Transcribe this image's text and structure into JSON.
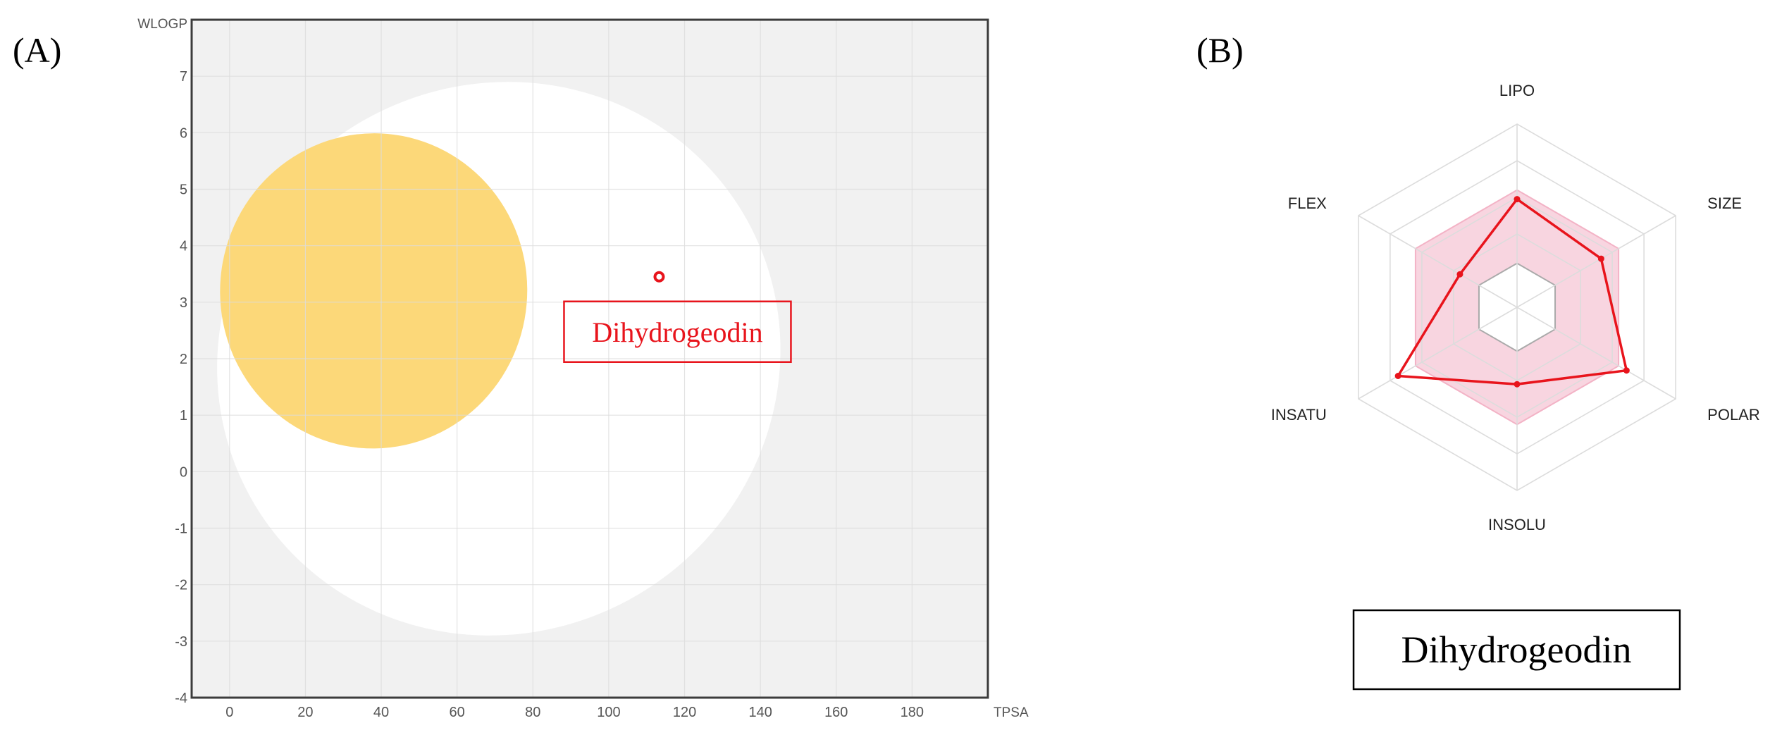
{
  "panels": {
    "a_letter": "(A)",
    "b_letter": "(B)"
  },
  "colors": {
    "plot_background": "#f1f1f1",
    "egg_white": "#ffffff",
    "yolk": "#fcd879",
    "molecule": "#e8141c",
    "radar_fill": "#f3b3c6",
    "grid": "#dcdcdc"
  },
  "chart_data": [
    {
      "type": "scatter",
      "xlabel": "TPSA",
      "ylabel": "WLOGP",
      "xlim": [
        -10,
        200
      ],
      "ylim": [
        -4,
        8
      ],
      "x_ticks": [
        "0",
        "20",
        "40",
        "60",
        "80",
        "100",
        "120",
        "140",
        "160",
        "180"
      ],
      "y_ticks": [
        "-4",
        "-3",
        "-2",
        "-1",
        "0",
        "1",
        "2",
        "3",
        "4",
        "5",
        "6",
        "7"
      ],
      "grid": true,
      "regions": [
        {
          "kind": "white",
          "center": [
            71,
            2
          ],
          "radii": [
            75,
            4.85
          ],
          "tilt_deg": -31
        },
        {
          "kind": "yolk",
          "center": [
            38,
            3.2
          ],
          "radii": [
            40.5,
            2.79
          ],
          "tilt_deg": 5
        }
      ],
      "points": [
        {
          "x": 113.3,
          "y": 3.45,
          "label": "Dihydrogeodin"
        }
      ]
    },
    {
      "type": "radar",
      "axes": [
        "LIPO",
        "SIZE",
        "POLAR",
        "INSOLU",
        "INSATU",
        "FLEX"
      ],
      "values": [
        0.59,
        0.53,
        0.69,
        0.42,
        0.75,
        0.36
      ],
      "optimal_range": {
        "outer": 0.64,
        "inner": 0.24
      },
      "title": "Dihydrogeodin"
    }
  ]
}
